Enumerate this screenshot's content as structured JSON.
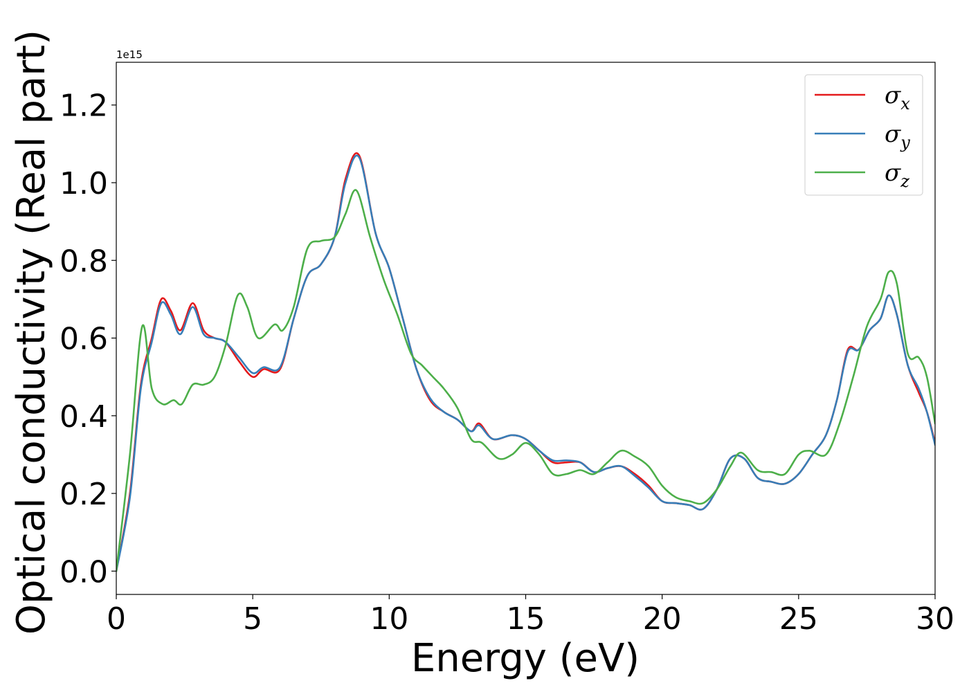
{
  "chart_data": {
    "type": "line",
    "title": "",
    "xlabel": "Energy (eV)",
    "ylabel": "Optical conductivity (Real part)",
    "y_offset_text": "1e15",
    "xlim": [
      0,
      30
    ],
    "ylim": [
      -0.06,
      1.31
    ],
    "x_ticks": [
      0,
      5,
      10,
      15,
      20,
      25,
      30
    ],
    "x_tick_labels": [
      "0",
      "5",
      "10",
      "15",
      "20",
      "25",
      "30"
    ],
    "y_ticks": [
      0.0,
      0.2,
      0.4,
      0.6,
      0.8,
      1.0,
      1.2
    ],
    "y_tick_labels": [
      "0.0",
      "0.2",
      "0.4",
      "0.6",
      "0.8",
      "1.0",
      "1.2"
    ],
    "grid": false,
    "legend_position": "top-right",
    "series": [
      {
        "name": "σx",
        "symbol": "σ",
        "subscript": "x",
        "color": "#e41a1c",
        "x": [
          0,
          0.5,
          0.9,
          1.3,
          1.65,
          2.0,
          2.35,
          2.8,
          3.2,
          3.6,
          4.0,
          4.5,
          5.0,
          5.4,
          6.0,
          6.5,
          7.0,
          7.5,
          8.0,
          8.4,
          8.9,
          9.5,
          10.0,
          10.5,
          11.0,
          11.5,
          12.0,
          12.5,
          13.0,
          13.3,
          13.8,
          14.5,
          15.0,
          15.5,
          16.0,
          16.5,
          17.0,
          17.5,
          18.0,
          18.5,
          19.0,
          19.5,
          20.0,
          20.5,
          21.0,
          21.5,
          22.0,
          22.5,
          23.0,
          23.5,
          24.0,
          24.5,
          25.0,
          25.5,
          26.0,
          26.4,
          26.8,
          27.2,
          27.6,
          28.0,
          28.3,
          28.6,
          29.0,
          29.4,
          29.7,
          30.0
        ],
        "y": [
          0.0,
          0.2,
          0.48,
          0.6,
          0.7,
          0.67,
          0.62,
          0.69,
          0.62,
          0.6,
          0.59,
          0.54,
          0.5,
          0.52,
          0.52,
          0.65,
          0.76,
          0.79,
          0.86,
          1.01,
          1.07,
          0.87,
          0.78,
          0.65,
          0.52,
          0.44,
          0.41,
          0.39,
          0.36,
          0.38,
          0.34,
          0.35,
          0.34,
          0.31,
          0.28,
          0.28,
          0.28,
          0.255,
          0.265,
          0.27,
          0.25,
          0.22,
          0.18,
          0.175,
          0.17,
          0.16,
          0.21,
          0.29,
          0.29,
          0.24,
          0.23,
          0.225,
          0.25,
          0.3,
          0.35,
          0.44,
          0.57,
          0.57,
          0.62,
          0.65,
          0.71,
          0.66,
          0.53,
          0.46,
          0.41,
          0.33
        ]
      },
      {
        "name": "σy",
        "symbol": "σ",
        "subscript": "y",
        "color": "#377eb8",
        "x": [
          0,
          0.5,
          0.9,
          1.3,
          1.65,
          2.0,
          2.35,
          2.8,
          3.2,
          3.6,
          4.0,
          4.5,
          5.0,
          5.4,
          6.0,
          6.5,
          7.0,
          7.5,
          8.0,
          8.4,
          8.9,
          9.5,
          10.0,
          10.5,
          11.0,
          11.5,
          12.0,
          12.5,
          13.0,
          13.3,
          13.8,
          14.5,
          15.0,
          15.5,
          16.0,
          16.5,
          17.0,
          17.5,
          18.0,
          18.5,
          19.0,
          19.5,
          20.0,
          20.5,
          21.0,
          21.5,
          22.0,
          22.5,
          23.0,
          23.5,
          24.0,
          24.5,
          25.0,
          25.5,
          26.0,
          26.4,
          26.8,
          27.2,
          27.6,
          28.0,
          28.3,
          28.6,
          29.0,
          29.4,
          29.7,
          30.0
        ],
        "y": [
          0.0,
          0.19,
          0.47,
          0.59,
          0.69,
          0.66,
          0.61,
          0.68,
          0.61,
          0.6,
          0.59,
          0.55,
          0.51,
          0.525,
          0.525,
          0.65,
          0.76,
          0.79,
          0.86,
          1.0,
          1.065,
          0.87,
          0.78,
          0.65,
          0.52,
          0.445,
          0.41,
          0.39,
          0.36,
          0.375,
          0.34,
          0.35,
          0.34,
          0.31,
          0.285,
          0.285,
          0.28,
          0.255,
          0.265,
          0.27,
          0.245,
          0.215,
          0.18,
          0.175,
          0.17,
          0.16,
          0.21,
          0.29,
          0.29,
          0.24,
          0.23,
          0.225,
          0.25,
          0.3,
          0.35,
          0.44,
          0.565,
          0.57,
          0.62,
          0.65,
          0.71,
          0.66,
          0.53,
          0.47,
          0.41,
          0.325
        ]
      },
      {
        "name": "σz",
        "symbol": "σ",
        "subscript": "z",
        "color": "#4daf4a",
        "x": [
          0,
          0.5,
          0.95,
          1.3,
          1.7,
          2.1,
          2.4,
          2.8,
          3.2,
          3.6,
          4.0,
          4.45,
          4.8,
          5.2,
          5.8,
          6.1,
          6.5,
          7.0,
          7.5,
          8.0,
          8.4,
          8.8,
          9.3,
          9.8,
          10.3,
          10.8,
          11.2,
          11.6,
          12.0,
          12.5,
          13.0,
          13.4,
          14.0,
          14.5,
          15.0,
          15.5,
          16.0,
          16.5,
          17.0,
          17.5,
          18.0,
          18.5,
          19.0,
          19.5,
          20.0,
          20.5,
          21.0,
          21.5,
          22.0,
          22.5,
          22.9,
          23.5,
          24.0,
          24.5,
          25.0,
          25.4,
          26.0,
          26.5,
          27.0,
          27.5,
          28.0,
          28.3,
          28.6,
          29.0,
          29.4,
          29.7,
          30.0
        ],
        "y": [
          0.0,
          0.3,
          0.63,
          0.47,
          0.43,
          0.44,
          0.43,
          0.48,
          0.48,
          0.5,
          0.58,
          0.71,
          0.68,
          0.6,
          0.635,
          0.62,
          0.68,
          0.83,
          0.85,
          0.86,
          0.92,
          0.98,
          0.86,
          0.75,
          0.66,
          0.56,
          0.53,
          0.5,
          0.47,
          0.42,
          0.34,
          0.33,
          0.29,
          0.3,
          0.33,
          0.3,
          0.25,
          0.25,
          0.26,
          0.25,
          0.28,
          0.31,
          0.295,
          0.27,
          0.22,
          0.19,
          0.18,
          0.175,
          0.21,
          0.27,
          0.305,
          0.26,
          0.255,
          0.25,
          0.3,
          0.31,
          0.3,
          0.38,
          0.5,
          0.63,
          0.7,
          0.77,
          0.74,
          0.56,
          0.55,
          0.5,
          0.38
        ]
      }
    ]
  }
}
